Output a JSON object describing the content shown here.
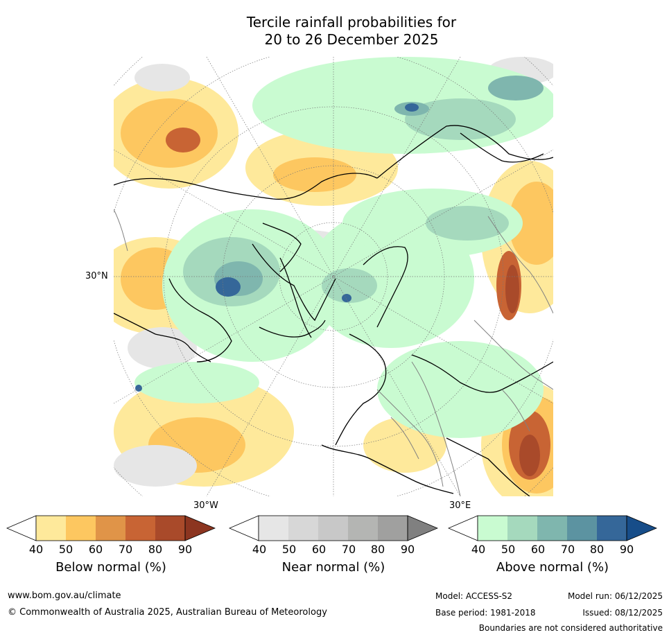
{
  "title_line1": "Tercile rainfall probabilities for",
  "title_line2": "20 to 26 December 2025",
  "map": {
    "latitude_label": "30°N",
    "longitude_label_left": "30°W",
    "longitude_label_right": "30°E"
  },
  "colorbars": [
    {
      "id": "below",
      "title": "Below normal (%)",
      "ticks": [
        "40",
        "50",
        "60",
        "70",
        "80",
        "90"
      ],
      "colors": [
        "#ffffff",
        "#fee99b",
        "#fdc760",
        "#e09448",
        "#c86434",
        "#a94a2a",
        "#8c3520"
      ]
    },
    {
      "id": "near",
      "title": "Near normal (%)",
      "ticks": [
        "40",
        "50",
        "60",
        "70",
        "80",
        "90"
      ],
      "colors": [
        "#ffffff",
        "#e6e6e6",
        "#d7d7d7",
        "#c8c8c8",
        "#b4b5b3",
        "#a0a09f",
        "#808080"
      ]
    },
    {
      "id": "above",
      "title": "Above normal (%)",
      "ticks": [
        "40",
        "50",
        "60",
        "70",
        "80",
        "90"
      ],
      "colors": [
        "#ffffff",
        "#c9fbd1",
        "#a5d9bd",
        "#7fb6ae",
        "#5c93a1",
        "#356799",
        "#174d89"
      ]
    }
  ],
  "footer": {
    "website": "www.bom.gov.au/climate",
    "copyright": "© Commonwealth of Australia 2025, Australian Bureau of Meteorology",
    "model": "Model: ACCESS-S2",
    "model_run": "Model run: 06/12/2025",
    "base_period": "Base period: 1981-2018",
    "issued": "Issued: 08/12/2025",
    "disclaimer": "Boundaries are not considered authoritative"
  }
}
